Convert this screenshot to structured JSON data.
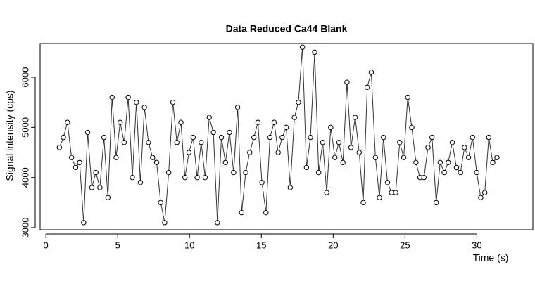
{
  "chart_data": {
    "type": "line",
    "title": "Data Reduced Ca44 Blank",
    "x_label": "Time (s)",
    "y_label": "Signal intensity (cps)",
    "color": "#000000",
    "marker": "circle",
    "xlim": [
      -0.4,
      33.9
    ],
    "xticks": [
      0,
      5,
      10,
      15,
      20,
      25,
      30
    ],
    "ylim": [
      2958,
      6673
    ],
    "yticks": [
      3000,
      4000,
      5000,
      6000
    ],
    "x": [
      0.94,
      1.22,
      1.5,
      1.79,
      2.07,
      2.35,
      2.63,
      2.91,
      3.2,
      3.48,
      3.76,
      4.04,
      4.32,
      4.61,
      4.89,
      5.17,
      5.45,
      5.73,
      6.02,
      6.3,
      6.58,
      6.86,
      7.14,
      7.43,
      7.71,
      7.99,
      8.27,
      8.55,
      8.84,
      9.12,
      9.4,
      9.68,
      9.96,
      10.25,
      10.53,
      10.81,
      11.09,
      11.37,
      11.66,
      11.94,
      12.22,
      12.5,
      12.78,
      13.07,
      13.35,
      13.63,
      13.91,
      14.19,
      14.48,
      14.76,
      15.04,
      15.32,
      15.6,
      15.89,
      16.17,
      16.45,
      16.73,
      17.01,
      17.3,
      17.58,
      17.86,
      18.14,
      18.42,
      18.71,
      18.99,
      19.27,
      19.55,
      19.83,
      20.12,
      20.4,
      20.68,
      20.96,
      21.24,
      21.53,
      21.81,
      22.09,
      22.37,
      22.65,
      22.94,
      23.22,
      23.5,
      23.78,
      24.06,
      24.35,
      24.63,
      24.91,
      25.19,
      25.47,
      25.76,
      26.04,
      26.32,
      26.6,
      26.88,
      27.17,
      27.45,
      27.73,
      28.01,
      28.29,
      28.58,
      28.86,
      29.14,
      29.42,
      29.7,
      29.99,
      30.27,
      30.55,
      30.83,
      31.11,
      31.4
    ],
    "values": [
      4600,
      4800,
      5100,
      4400,
      4200,
      4300,
      3100,
      4900,
      3800,
      4100,
      3800,
      4800,
      3600,
      5600,
      4400,
      5100,
      4700,
      5600,
      4000,
      5500,
      3900,
      5400,
      4700,
      4400,
      4300,
      3500,
      3100,
      4100,
      5500,
      4700,
      5100,
      4000,
      4500,
      4800,
      4000,
      4700,
      4000,
      5200,
      4900,
      3100,
      4800,
      4300,
      4900,
      4100,
      5400,
      3300,
      4100,
      4500,
      4800,
      5100,
      3900,
      3300,
      4800,
      5100,
      4500,
      4800,
      5000,
      3800,
      5200,
      5500,
      6600,
      4200,
      4800,
      6500,
      4100,
      4700,
      3700,
      5000,
      4400,
      4700,
      4300,
      5900,
      4600,
      5200,
      4500,
      3500,
      5800,
      6100,
      4400,
      3600,
      4800,
      3900,
      3700,
      3700,
      4700,
      4400,
      5600,
      5000,
      4300,
      4000,
      4000,
      4600,
      4800,
      3500,
      4300,
      4100,
      4300,
      4700,
      4200,
      4100,
      4600,
      4400,
      4800,
      4100,
      3600,
      3700,
      4800,
      4300,
      4400
    ]
  }
}
